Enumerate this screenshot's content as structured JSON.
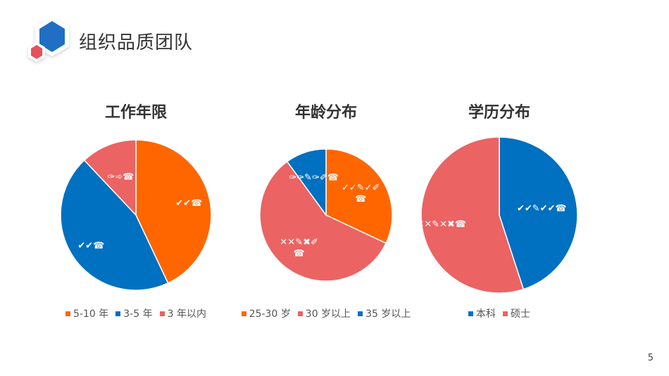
{
  "slide": {
    "title": "组织品质团队",
    "page_number": "5"
  },
  "colors": {
    "orange": "#ff6600",
    "blue": "#0070c0",
    "coral": "#eb6363",
    "logo_blue": "#1f6fc4",
    "logo_red": "#e8505b"
  },
  "chart_data": [
    {
      "type": "pie",
      "title": "工作年限",
      "series": [
        {
          "name": "5-10 年",
          "value": 43,
          "color": "#ff6600",
          "label": "✔✔☎",
          "label_lines": [
            "✔✔☎"
          ]
        },
        {
          "name": "3-5 年",
          "value": 45,
          "color": "#0070c0",
          "label": "✔✔☎",
          "label_lines": [
            "✔✔☎"
          ]
        },
        {
          "name": "3 年以内",
          "value": 12,
          "color": "#eb6363",
          "label": "✑➾☎",
          "label_lines": [
            "✑➾☎"
          ]
        }
      ],
      "legend_position": "bottom"
    },
    {
      "type": "pie",
      "title": "年龄分布",
      "series": [
        {
          "name": "25-30 岁",
          "value": 32,
          "color": "#ff6600",
          "label": "✓✓✎✓✐ ☎",
          "label_lines": [
            "✓✓✎✓✐",
            "☎"
          ]
        },
        {
          "name": "30 岁以上",
          "value": 58,
          "color": "#eb6363",
          "label": "✕✕✎✖✐ ☎",
          "label_lines": [
            "✕✕✎✖✐",
            "☎"
          ]
        },
        {
          "name": "35 岁以上",
          "value": 10,
          "color": "#0070c0",
          "label": "✑✑✎✑✐☎",
          "label_lines": [
            "✑✑✎✑✐☎"
          ]
        }
      ],
      "legend_position": "bottom"
    },
    {
      "type": "pie",
      "title": "学历分布",
      "series": [
        {
          "name": "本科",
          "value": 45,
          "color": "#0070c0",
          "label": "✔✔✎✔✔☎",
          "label_lines": [
            "✔✔✎✔✔☎"
          ]
        },
        {
          "name": "硕士",
          "value": 55,
          "color": "#eb6363",
          "label": "✕✕✎✕✖☎",
          "label_lines": [
            "✕✕✎✕✖☎"
          ]
        }
      ],
      "legend_position": "bottom"
    }
  ]
}
